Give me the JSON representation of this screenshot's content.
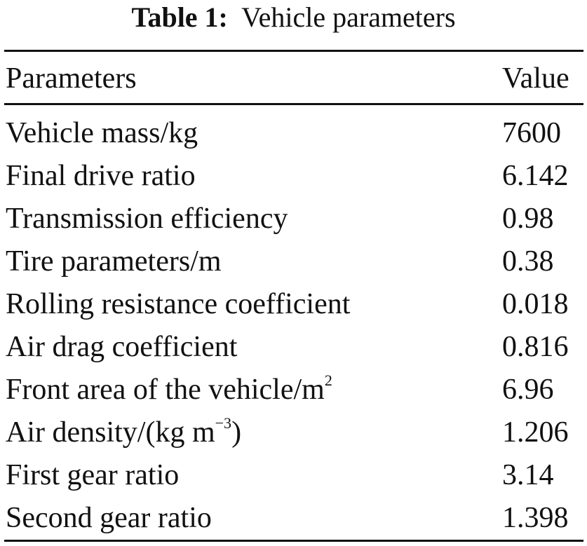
{
  "caption": {
    "label": "Table 1:",
    "title": "Vehicle parameters"
  },
  "table": {
    "headers": [
      "Parameters",
      "Value"
    ],
    "rows": [
      {
        "parameter": "Vehicle mass/kg",
        "value": "7600"
      },
      {
        "parameter": "Final drive ratio",
        "value": "6.142"
      },
      {
        "parameter": "Transmission efficiency",
        "value": "0.98"
      },
      {
        "parameter": "Tire parameters/m",
        "value": "0.38"
      },
      {
        "parameter": "Rolling resistance coefficient",
        "value": "0.018"
      },
      {
        "parameter": "Air drag coefficient",
        "value": "0.816"
      },
      {
        "parameter": "Front area of the vehicle/m",
        "parameter_sup": "2",
        "value": "6.96"
      },
      {
        "parameter": "Air density/(kg m",
        "parameter_sup": "−3",
        "parameter_suffix": ")",
        "value": "1.206"
      },
      {
        "parameter": "First gear ratio",
        "value": "3.14"
      },
      {
        "parameter": "Second gear ratio",
        "value": "1.398"
      }
    ]
  }
}
